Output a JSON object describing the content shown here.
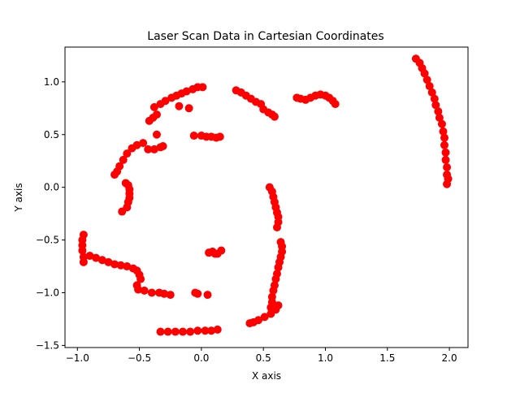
{
  "chart_data": {
    "type": "scatter",
    "title": "Laser Scan Data in Cartesian Coordinates",
    "xlabel": "X axis",
    "ylabel": "Y axis",
    "xlim": [
      -1.1,
      2.15
    ],
    "ylim": [
      -1.52,
      1.33
    ],
    "xticks": [
      -1.0,
      -0.5,
      0.0,
      0.5,
      1.0,
      1.5,
      2.0
    ],
    "xtick_labels": [
      "−1.0",
      "−0.5",
      "0.0",
      "0.5",
      "1.0",
      "1.5",
      "2.0"
    ],
    "yticks": [
      -1.5,
      -1.0,
      -0.5,
      0.0,
      0.5,
      1.0
    ],
    "ytick_labels": [
      "−1.5",
      "−1.0",
      "−0.5",
      "0.0",
      "0.5",
      "1.0"
    ],
    "grid": false,
    "legend": "none",
    "marker_color": "#ff0000",
    "series": [
      {
        "points": [
          [
            1.73,
            1.22
          ],
          [
            1.76,
            1.18
          ],
          [
            1.78,
            1.13
          ],
          [
            1.8,
            1.08
          ],
          [
            1.82,
            1.02
          ],
          [
            1.84,
            0.96
          ],
          [
            1.86,
            0.9
          ],
          [
            1.88,
            0.84
          ],
          [
            1.89,
            0.78
          ],
          [
            1.91,
            0.72
          ],
          [
            1.92,
            0.66
          ],
          [
            1.94,
            0.6
          ],
          [
            1.95,
            0.53
          ],
          [
            1.96,
            0.47
          ],
          [
            1.96,
            0.4
          ],
          [
            1.97,
            0.33
          ],
          [
            1.97,
            0.26
          ],
          [
            1.98,
            0.19
          ],
          [
            1.98,
            0.12
          ],
          [
            1.99,
            0.08
          ],
          [
            1.98,
            0.03
          ],
          [
            -0.47,
            0.42
          ],
          [
            -0.52,
            0.4
          ],
          [
            -0.56,
            0.37
          ],
          [
            -0.6,
            0.32
          ],
          [
            -0.63,
            0.26
          ],
          [
            -0.66,
            0.2
          ],
          [
            -0.68,
            0.15
          ],
          [
            -0.7,
            0.12
          ],
          [
            -0.42,
            0.63
          ],
          [
            -0.39,
            0.66
          ],
          [
            -0.36,
            0.69
          ],
          [
            -0.38,
            0.76
          ],
          [
            -0.33,
            0.79
          ],
          [
            -0.29,
            0.82
          ],
          [
            -0.24,
            0.85
          ],
          [
            -0.2,
            0.87
          ],
          [
            -0.16,
            0.89
          ],
          [
            -0.12,
            0.91
          ],
          [
            -0.07,
            0.93
          ],
          [
            -0.03,
            0.95
          ],
          [
            0.01,
            0.95
          ],
          [
            -0.18,
            0.77
          ],
          [
            -0.1,
            0.75
          ],
          [
            -0.43,
            0.36
          ],
          [
            -0.38,
            0.36
          ],
          [
            -0.33,
            0.38
          ],
          [
            -0.31,
            0.39
          ],
          [
            -0.36,
            0.5
          ],
          [
            -0.61,
            0.04
          ],
          [
            -0.59,
            0.02
          ],
          [
            -0.58,
            -0.02
          ],
          [
            -0.58,
            -0.06
          ],
          [
            -0.58,
            -0.1
          ],
          [
            -0.59,
            -0.14
          ],
          [
            -0.6,
            -0.19
          ],
          [
            -0.64,
            -0.23
          ],
          [
            -0.06,
            0.49
          ],
          [
            0.0,
            0.49
          ],
          [
            0.04,
            0.48
          ],
          [
            0.08,
            0.48
          ],
          [
            0.12,
            0.47
          ],
          [
            0.15,
            0.48
          ],
          [
            0.28,
            0.92
          ],
          [
            0.32,
            0.9
          ],
          [
            0.36,
            0.87
          ],
          [
            0.4,
            0.84
          ],
          [
            0.44,
            0.81
          ],
          [
            0.48,
            0.79
          ],
          [
            0.5,
            0.74
          ],
          [
            0.54,
            0.71
          ],
          [
            0.57,
            0.69
          ],
          [
            0.59,
            0.67
          ],
          [
            0.77,
            0.85
          ],
          [
            0.8,
            0.84
          ],
          [
            0.84,
            0.83
          ],
          [
            0.88,
            0.85
          ],
          [
            0.92,
            0.87
          ],
          [
            0.96,
            0.88
          ],
          [
            1.0,
            0.87
          ],
          [
            1.03,
            0.85
          ],
          [
            1.06,
            0.82
          ],
          [
            1.08,
            0.79
          ],
          [
            0.55,
            0.0
          ],
          [
            0.57,
            -0.04
          ],
          [
            0.58,
            -0.09
          ],
          [
            0.59,
            -0.14
          ],
          [
            0.6,
            -0.19
          ],
          [
            0.61,
            -0.24
          ],
          [
            0.62,
            -0.28
          ],
          [
            0.62,
            -0.33
          ],
          [
            0.61,
            -0.38
          ],
          [
            0.64,
            -0.52
          ],
          [
            0.65,
            -0.56
          ],
          [
            0.65,
            -0.61
          ],
          [
            0.64,
            -0.66
          ],
          [
            0.63,
            -0.71
          ],
          [
            0.62,
            -0.76
          ],
          [
            0.61,
            -0.82
          ],
          [
            0.6,
            -0.87
          ],
          [
            0.59,
            -0.93
          ],
          [
            0.58,
            -0.98
          ],
          [
            0.57,
            -1.04
          ],
          [
            0.57,
            -1.09
          ],
          [
            0.56,
            -1.14
          ],
          [
            0.62,
            -1.12
          ],
          [
            0.6,
            -1.16
          ],
          [
            0.56,
            -1.2
          ],
          [
            0.51,
            -1.23
          ],
          [
            0.46,
            -1.26
          ],
          [
            0.42,
            -1.28
          ],
          [
            0.39,
            -1.29
          ],
          [
            -0.95,
            -0.45
          ],
          [
            -0.96,
            -0.5
          ],
          [
            -0.96,
            -0.55
          ],
          [
            -0.96,
            -0.6
          ],
          [
            -0.95,
            -0.66
          ],
          [
            -0.95,
            -0.71
          ],
          [
            -0.9,
            -0.65
          ],
          [
            -0.85,
            -0.67
          ],
          [
            -0.8,
            -0.69
          ],
          [
            -0.75,
            -0.71
          ],
          [
            -0.7,
            -0.73
          ],
          [
            -0.65,
            -0.74
          ],
          [
            -0.6,
            -0.75
          ],
          [
            -0.55,
            -0.77
          ],
          [
            -0.52,
            -0.79
          ],
          [
            -0.5,
            -0.83
          ],
          [
            -0.49,
            -0.87
          ],
          [
            -0.52,
            -0.93
          ],
          [
            -0.51,
            -0.97
          ],
          [
            -0.46,
            -0.98
          ],
          [
            -0.4,
            -1.0
          ],
          [
            -0.34,
            -1.0
          ],
          [
            -0.3,
            -1.01
          ],
          [
            -0.25,
            -1.02
          ],
          [
            -0.33,
            -1.37
          ],
          [
            -0.27,
            -1.37
          ],
          [
            -0.21,
            -1.37
          ],
          [
            -0.15,
            -1.37
          ],
          [
            -0.09,
            -1.37
          ],
          [
            -0.03,
            -1.36
          ],
          [
            0.03,
            -1.36
          ],
          [
            0.08,
            -1.36
          ],
          [
            0.13,
            -1.35
          ],
          [
            -0.05,
            -1.0
          ],
          [
            -0.03,
            -1.01
          ],
          [
            0.05,
            -1.02
          ],
          [
            0.06,
            -0.62
          ],
          [
            0.09,
            -0.61
          ],
          [
            0.11,
            -0.63
          ],
          [
            0.13,
            -0.63
          ],
          [
            0.16,
            -0.6
          ]
        ]
      }
    ]
  }
}
